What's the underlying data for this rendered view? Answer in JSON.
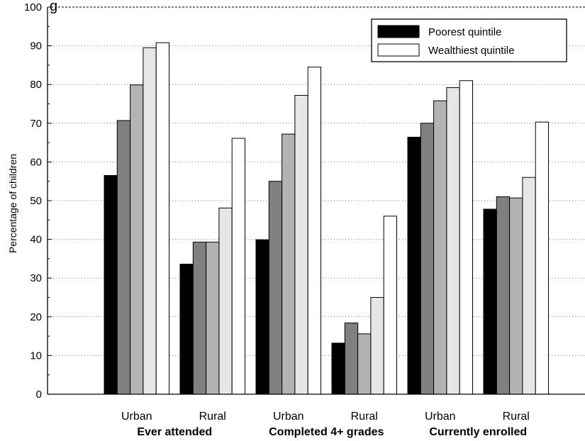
{
  "chart_data": {
    "type": "bar",
    "title": "",
    "title_fragment": "g",
    "ylabel": "Percentage of children",
    "xlabel": "",
    "ylim": [
      0,
      100
    ],
    "yticks": [
      0,
      10,
      20,
      30,
      40,
      50,
      60,
      70,
      80,
      90,
      100
    ],
    "grid": "horizontal dotted",
    "legend_position": "top-right",
    "legend": [
      {
        "label": "Poorest quintile",
        "color": "#000000"
      },
      {
        "label": "Wealthiest quintile",
        "color": "#ffffff"
      }
    ],
    "quintile_colors": [
      "#000000",
      "#808080",
      "#b3b3b3",
      "#e6e6e6",
      "#ffffff"
    ],
    "groups": [
      {
        "label": "Ever attended",
        "categories": [
          "Urban",
          "Rural"
        ]
      },
      {
        "label": "Completed 4+ grades",
        "categories": [
          "Urban",
          "Rural"
        ]
      },
      {
        "label": "Currently enrolled",
        "categories": [
          "Urban",
          "Rural"
        ]
      }
    ],
    "categories": [
      "Urban",
      "Rural",
      "Urban",
      "Rural",
      "Urban",
      "Rural"
    ],
    "values": [
      [
        56.5,
        70.7,
        79.9,
        89.5,
        90.8
      ],
      [
        33.6,
        39.3,
        39.3,
        48.1,
        66.1
      ],
      [
        39.9,
        55.0,
        67.2,
        77.2,
        84.5
      ],
      [
        13.2,
        18.4,
        15.6,
        25.0,
        46.0
      ],
      [
        66.4,
        70.0,
        75.8,
        79.2,
        81.0
      ],
      [
        47.8,
        51.0,
        50.7,
        56.0,
        70.3
      ]
    ]
  }
}
